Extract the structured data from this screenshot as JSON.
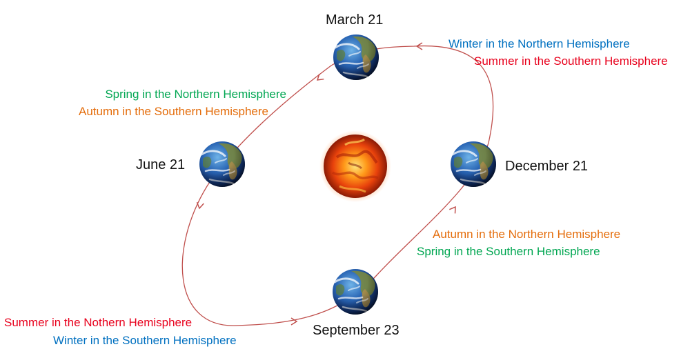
{
  "colors": {
    "orbit": "#c0504d",
    "spring": "#00a651",
    "autumn": "#e46c0a",
    "winter": "#0070c0",
    "summer": "#e8001c",
    "date_text": "#111111"
  },
  "positions": {
    "march": {
      "date": "March 21",
      "lines": [
        {
          "text": "Winter in the Northern Hemisphere",
          "season": "winter"
        },
        {
          "text": "Summer in the Southern Hemisphere",
          "season": "summer"
        }
      ]
    },
    "june": {
      "date": "June 21",
      "lines": [
        {
          "text": "Spring in the Northern Hemisphere",
          "season": "spring"
        },
        {
          "text": "Autumn in the Southern Hemisphere",
          "season": "autumn"
        }
      ]
    },
    "september": {
      "date": "September 23",
      "lines": [
        {
          "text": "Summer in the Nothern Hemisphere",
          "season": "summer"
        },
        {
          "text": "Winter in the Southern Hemisphere",
          "season": "winter"
        }
      ]
    },
    "december": {
      "date": "December 21",
      "lines": [
        {
          "text": "Autumn in the Northern Hemisphere",
          "season": "autumn"
        },
        {
          "text": "Spring in the Southern Hemisphere",
          "season": "spring"
        }
      ]
    }
  },
  "icons": {
    "sun": "sun-icon",
    "earth": "earth-icon",
    "arrow": "orbit-arrow-icon"
  }
}
